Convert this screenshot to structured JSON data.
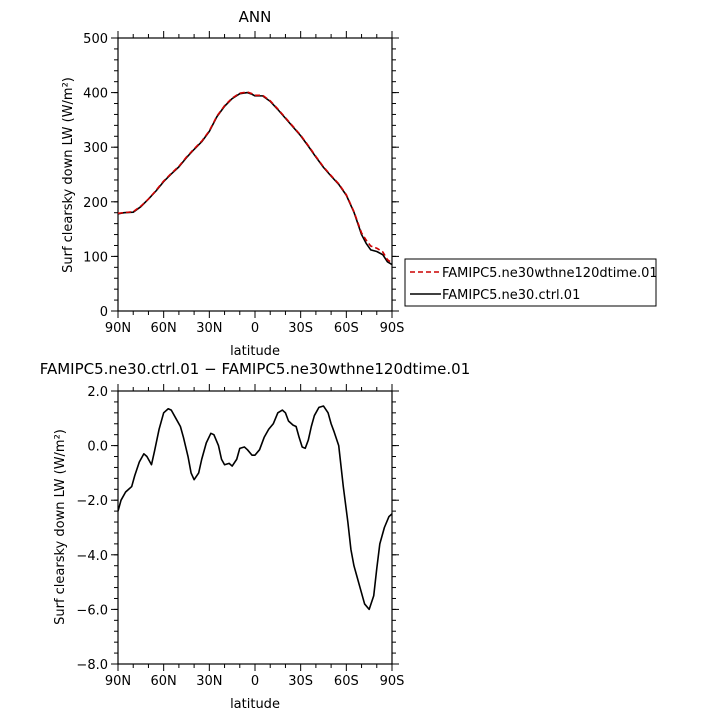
{
  "chart_data": [
    {
      "type": "line",
      "title": "ANN",
      "xlabel": "latitude",
      "ylabel": "Surf clearsky down LW (W/m²)",
      "x_tick_labels": [
        "90N",
        "60N",
        "30N",
        "0",
        "30S",
        "60S",
        "90S"
      ],
      "x_ticks": [
        90,
        60,
        30,
        0,
        -30,
        -60,
        -90
      ],
      "xlim": [
        90,
        -90
      ],
      "ylim": [
        0,
        500
      ],
      "y_ticks": [
        0,
        100,
        200,
        300,
        400,
        500
      ],
      "y_tick_labels": [
        "0",
        "100",
        "200",
        "300",
        "400",
        "500"
      ],
      "legend_position": "outside right",
      "series": [
        {
          "name": "FAMIPC5.ne30wthne120dtime.01",
          "color": "#cc0000",
          "dash": "dashed",
          "x": [
            90,
            86,
            80,
            75,
            70,
            65,
            60,
            55,
            50,
            45,
            40,
            35,
            30,
            25,
            20,
            15,
            10,
            5,
            2,
            0,
            -5,
            -10,
            -15,
            -20,
            -25,
            -30,
            -35,
            -40,
            -45,
            -50,
            -55,
            -60,
            -65,
            -70,
            -73,
            -76,
            -80,
            -84,
            -87,
            -90
          ],
          "y": [
            179,
            180,
            182,
            192,
            205,
            221,
            238,
            252,
            265,
            282,
            297,
            311,
            330,
            357,
            376,
            390,
            399,
            401,
            398,
            395,
            395,
            385,
            370,
            354,
            338,
            322,
            303,
            283,
            264,
            248,
            233,
            213,
            182,
            143,
            130,
            119,
            115,
            108,
            94,
            88
          ]
        },
        {
          "name": "FAMIPC5.ne30.ctrl.01",
          "color": "#000000",
          "dash": "solid",
          "x": [
            90,
            86,
            80,
            75,
            70,
            65,
            60,
            55,
            50,
            45,
            40,
            35,
            30,
            25,
            20,
            15,
            10,
            5,
            2,
            0,
            -5,
            -10,
            -15,
            -20,
            -25,
            -30,
            -35,
            -40,
            -45,
            -50,
            -55,
            -60,
            -65,
            -70,
            -73,
            -76,
            -80,
            -84,
            -87,
            -90
          ],
          "y": [
            178,
            180,
            181,
            191,
            205,
            220,
            237,
            251,
            264,
            281,
            296,
            310,
            329,
            356,
            375,
            389,
            398,
            400,
            397,
            394,
            394,
            384,
            369,
            353,
            337,
            321,
            302,
            282,
            263,
            247,
            232,
            212,
            181,
            140,
            124,
            112,
            109,
            103,
            90,
            85
          ]
        }
      ]
    },
    {
      "type": "line",
      "title": "FAMIPC5.ne30.ctrl.01 − FAMIPC5.ne30wthne120dtime.01",
      "xlabel": "latitude",
      "ylabel": "Surf clearsky down LW (W/m²)",
      "x_tick_labels": [
        "90N",
        "60N",
        "30N",
        "0",
        "30S",
        "60S",
        "90S"
      ],
      "x_ticks": [
        90,
        60,
        30,
        0,
        -30,
        -60,
        -90
      ],
      "xlim": [
        90,
        -90
      ],
      "ylim": [
        -8,
        2
      ],
      "y_ticks": [
        -8,
        -6,
        -4,
        -2,
        0,
        2
      ],
      "y_tick_labels": [
        "−8.0",
        "−6.0",
        "−4.0",
        "−2.0",
        "0.0",
        "2.0"
      ],
      "series": [
        {
          "color": "#000000",
          "x": [
            90,
            88,
            85,
            83,
            81,
            79,
            76,
            73,
            71,
            68,
            66,
            63,
            60,
            57,
            55,
            52,
            49,
            47,
            44,
            42,
            40,
            37,
            35,
            32,
            29,
            27,
            24,
            22,
            20,
            17,
            15,
            12,
            10,
            7,
            5,
            2,
            0,
            -3,
            -6,
            -9,
            -12,
            -15,
            -18,
            -20,
            -22,
            -25,
            -27,
            -29,
            -31,
            -33,
            -35,
            -37,
            -39,
            -42,
            -45,
            -48,
            -50,
            -52,
            -55,
            -58,
            -61,
            -63,
            -65,
            -67,
            -69,
            -72,
            -75,
            -78,
            -80,
            -82,
            -85,
            -88,
            -90
          ],
          "y": [
            -2.4,
            -2.0,
            -1.7,
            -1.6,
            -1.5,
            -1.1,
            -0.6,
            -0.3,
            -0.4,
            -0.7,
            -0.2,
            0.6,
            1.2,
            1.35,
            1.3,
            1.0,
            0.7,
            0.3,
            -0.4,
            -1.0,
            -1.25,
            -1.0,
            -0.5,
            0.1,
            0.45,
            0.4,
            0.0,
            -0.5,
            -0.7,
            -0.65,
            -0.75,
            -0.5,
            -0.1,
            -0.05,
            -0.15,
            -0.35,
            -0.35,
            -0.15,
            0.3,
            0.6,
            0.8,
            1.2,
            1.3,
            1.2,
            0.9,
            0.75,
            0.7,
            0.3,
            -0.05,
            -0.1,
            0.2,
            0.7,
            1.1,
            1.4,
            1.45,
            1.2,
            0.8,
            0.5,
            0.0,
            -1.5,
            -2.8,
            -3.8,
            -4.4,
            -4.8,
            -5.2,
            -5.8,
            -6.0,
            -5.5,
            -4.5,
            -3.6,
            -3.0,
            -2.6,
            -2.5
          ]
        }
      ]
    }
  ]
}
